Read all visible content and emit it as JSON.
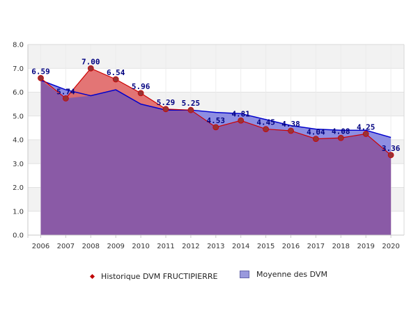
{
  "chart_data": {
    "type": "area",
    "x": [
      2006,
      2007,
      2008,
      2009,
      2010,
      2011,
      2012,
      2013,
      2014,
      2015,
      2016,
      2017,
      2018,
      2019,
      2020
    ],
    "ylim": [
      0,
      8
    ],
    "yticks": [
      "0.0",
      "1.0",
      "2.0",
      "3.0",
      "4.0",
      "5.0",
      "6.0",
      "7.0",
      "8.0"
    ],
    "grid": true,
    "legend_position": "bottom",
    "series": [
      {
        "name": "Historique DVM FRUCTIPIERRE",
        "values": [
          6.59,
          5.74,
          7.0,
          6.54,
          5.96,
          5.29,
          5.25,
          4.53,
          4.81,
          4.45,
          4.38,
          4.04,
          4.08,
          4.25,
          3.36
        ],
        "labels": [
          "6.59",
          "5.74",
          "7.00",
          "6.54",
          "5.96",
          "5.29",
          "5.25",
          "4.53",
          "4.81",
          "4.45",
          "4.38",
          "4.04",
          "4.08",
          "4.25",
          "3.36"
        ],
        "color": "#c00000"
      },
      {
        "name": "Moyenne des DVM",
        "values": [
          6.5,
          6.1,
          5.85,
          6.1,
          5.5,
          5.25,
          5.25,
          5.15,
          5.1,
          4.85,
          4.6,
          4.45,
          4.4,
          4.4,
          4.1
        ],
        "color": "#0000cc"
      }
    ]
  },
  "colors": {
    "fructi_area": "#e06666",
    "avg_area": "#8888e0",
    "overlap_area": "#8a5aa6",
    "fructi_line": "#cc0000",
    "avg_line": "#0000cc",
    "marker": "#993333",
    "band": "#f2f2f2"
  }
}
